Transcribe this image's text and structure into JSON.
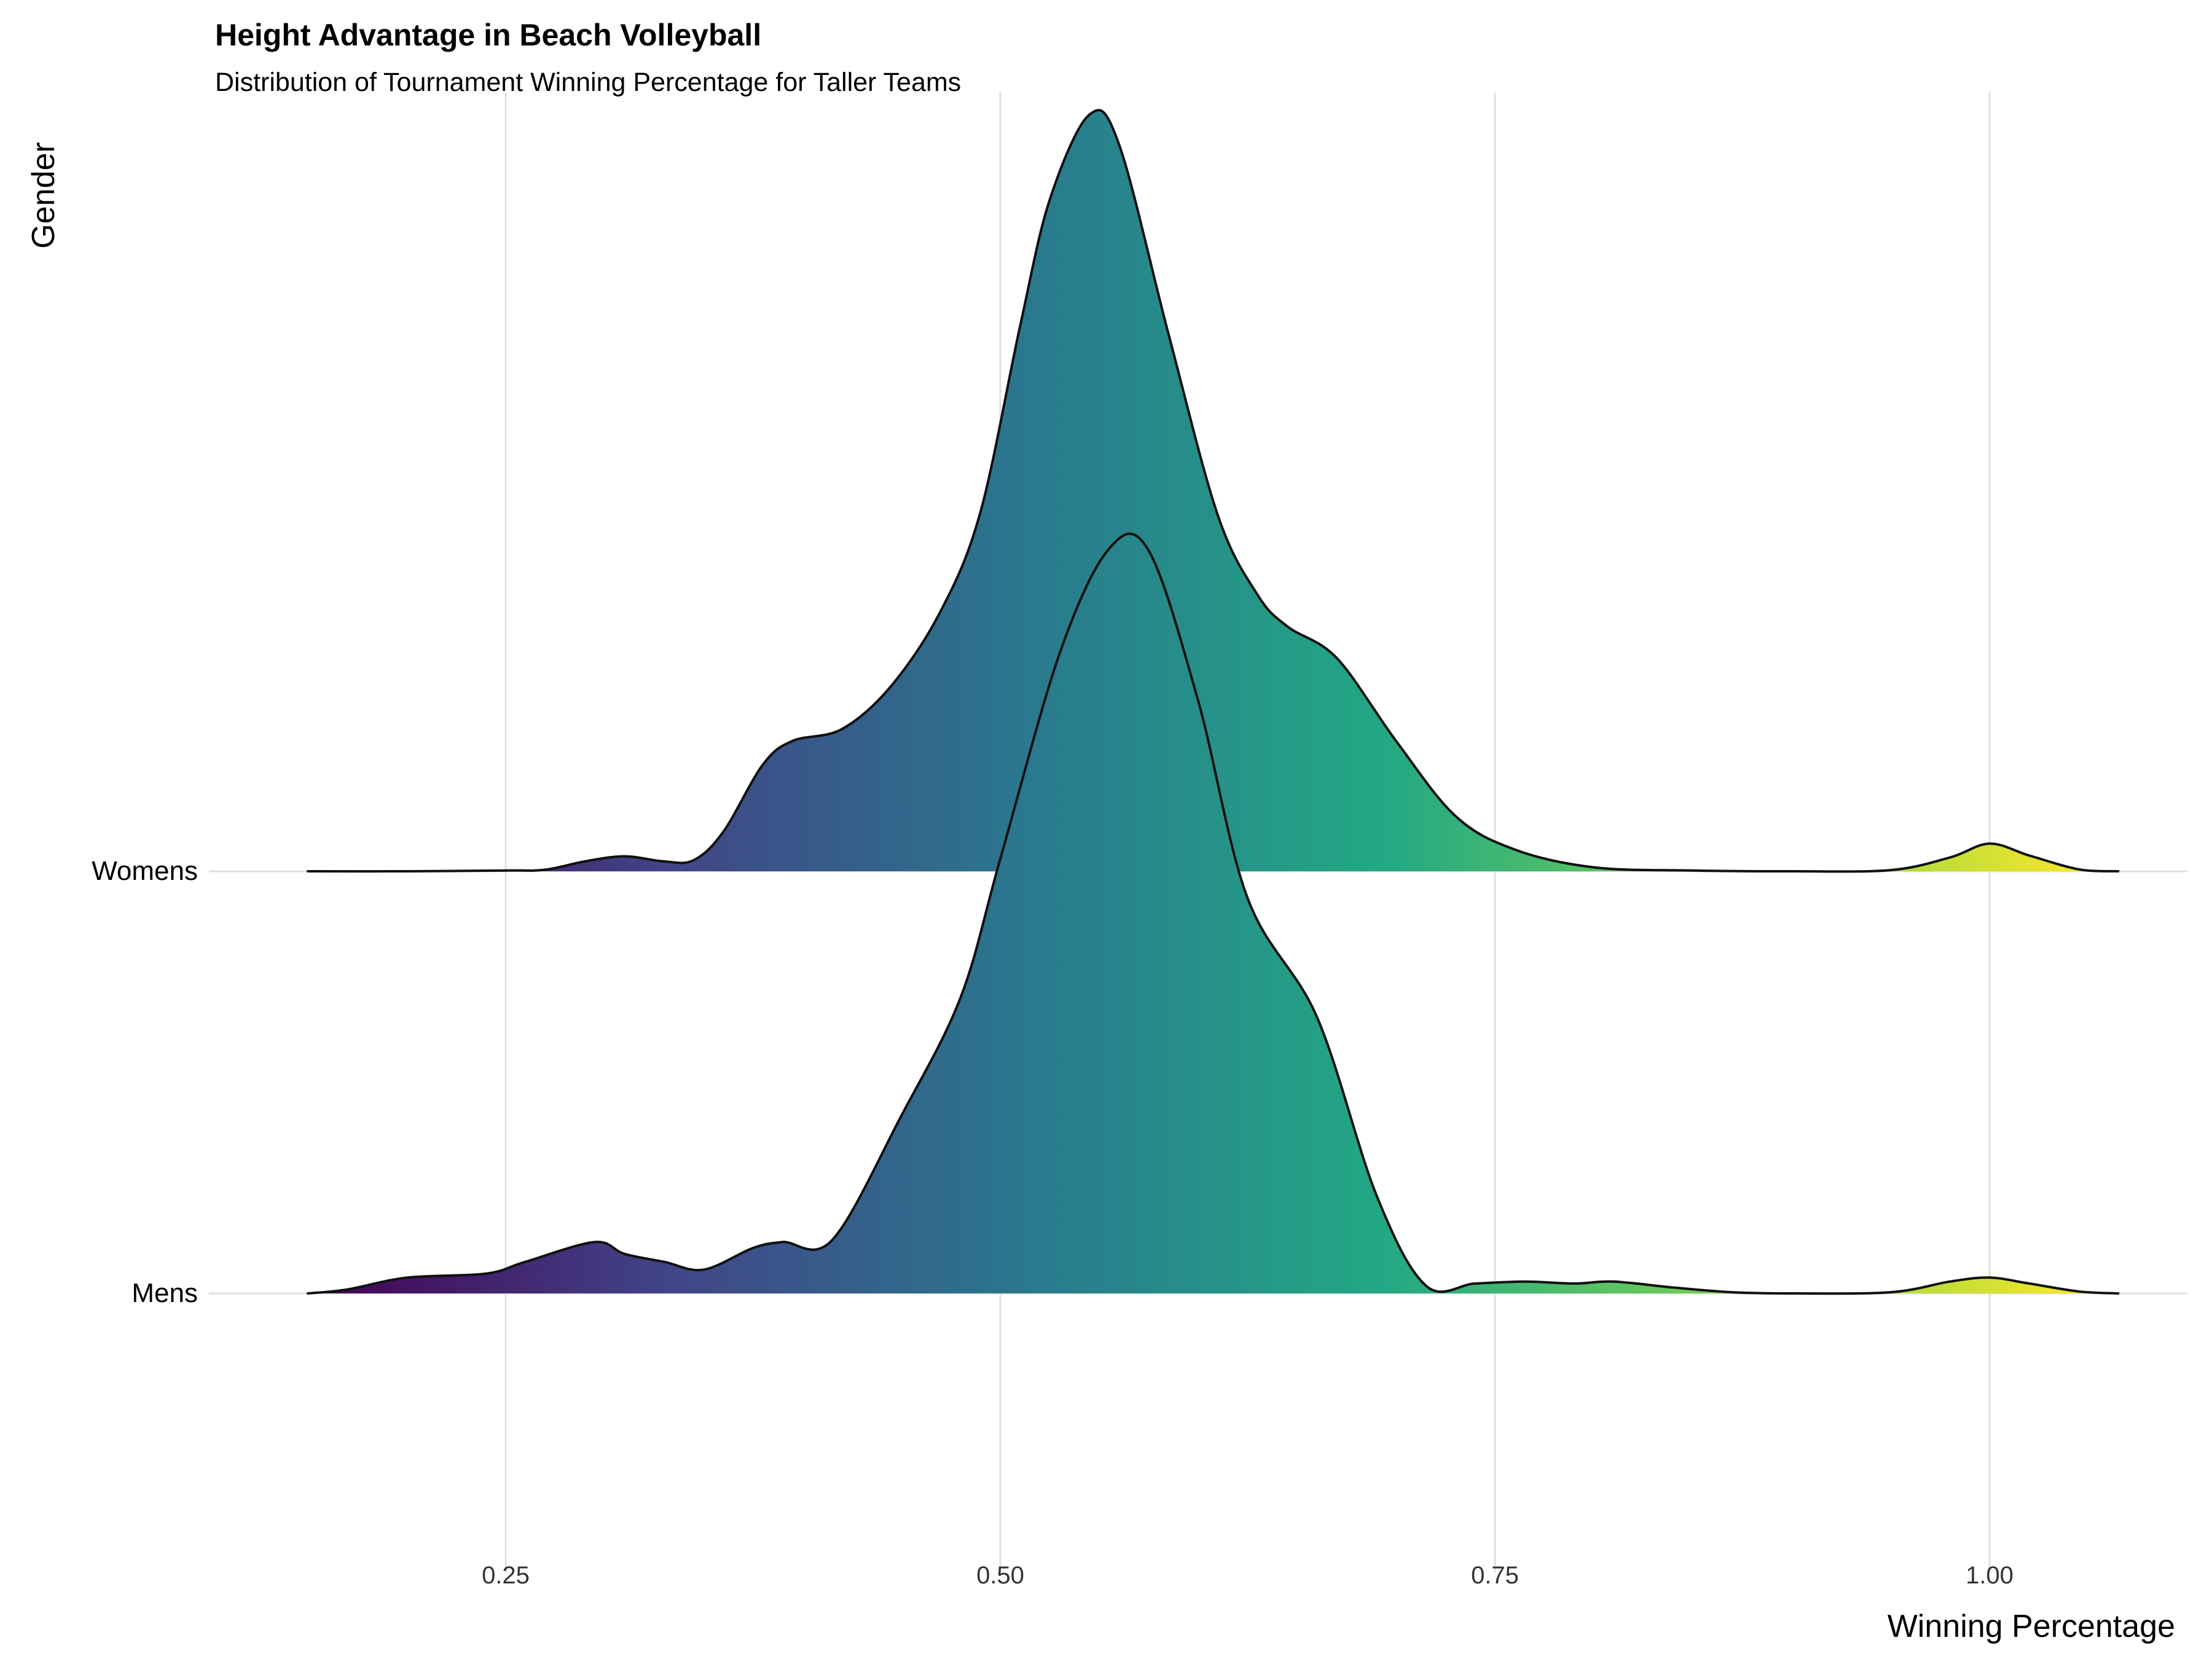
{
  "chart_data": {
    "type": "ridgeline",
    "title": "Height Advantage in Beach Volleyball",
    "subtitle": "Distribution of Tournament Winning Percentage for Taller Teams",
    "xlabel": "Winning Percentage",
    "ylabel": "Gender",
    "xlim": [
      0.1,
      1.1
    ],
    "x_ticks": [
      0.25,
      0.5,
      0.75,
      1.0
    ],
    "x_tick_labels": [
      "0.25",
      "0.50",
      "0.75",
      "1.00"
    ],
    "grid": true,
    "legend": "none",
    "fill_palette": [
      "#440154",
      "#3b528b",
      "#21918c",
      "#27ad81",
      "#5ec962",
      "#fde725"
    ],
    "categories": [
      "Womens",
      "Mens"
    ],
    "series": [
      {
        "name": "Womens",
        "points": [
          [
            0.15,
            0.0
          ],
          [
            0.2,
            0.0
          ],
          [
            0.25,
            0.002
          ],
          [
            0.27,
            0.004
          ],
          [
            0.29,
            0.025
          ],
          [
            0.31,
            0.038
          ],
          [
            0.33,
            0.025
          ],
          [
            0.345,
            0.028
          ],
          [
            0.36,
            0.1
          ],
          [
            0.38,
            0.27
          ],
          [
            0.395,
            0.33
          ],
          [
            0.42,
            0.36
          ],
          [
            0.445,
            0.47
          ],
          [
            0.47,
            0.66
          ],
          [
            0.49,
            0.91
          ],
          [
            0.51,
            1.38
          ],
          [
            0.525,
            1.7
          ],
          [
            0.545,
            1.915
          ],
          [
            0.56,
            1.84
          ],
          [
            0.585,
            1.36
          ],
          [
            0.61,
            0.9
          ],
          [
            0.63,
            0.7
          ],
          [
            0.645,
            0.62
          ],
          [
            0.67,
            0.54
          ],
          [
            0.7,
            0.33
          ],
          [
            0.73,
            0.14
          ],
          [
            0.76,
            0.055
          ],
          [
            0.8,
            0.01
          ],
          [
            0.85,
            0.002
          ],
          [
            0.9,
            0.0
          ],
          [
            0.95,
            0.003
          ],
          [
            0.98,
            0.035
          ],
          [
            1.0,
            0.07
          ],
          [
            1.02,
            0.04
          ],
          [
            1.045,
            0.005
          ],
          [
            1.065,
            0.0
          ]
        ]
      },
      {
        "name": "Mens",
        "points": [
          [
            0.15,
            0.0
          ],
          [
            0.17,
            0.01
          ],
          [
            0.2,
            0.04
          ],
          [
            0.24,
            0.05
          ],
          [
            0.26,
            0.08
          ],
          [
            0.295,
            0.13
          ],
          [
            0.31,
            0.1
          ],
          [
            0.33,
            0.08
          ],
          [
            0.35,
            0.06
          ],
          [
            0.375,
            0.115
          ],
          [
            0.39,
            0.13
          ],
          [
            0.415,
            0.135
          ],
          [
            0.45,
            0.45
          ],
          [
            0.48,
            0.75
          ],
          [
            0.5,
            1.1
          ],
          [
            0.53,
            1.62
          ],
          [
            0.555,
            1.885
          ],
          [
            0.575,
            1.88
          ],
          [
            0.6,
            1.5
          ],
          [
            0.625,
            1.0
          ],
          [
            0.66,
            0.7
          ],
          [
            0.69,
            0.25
          ],
          [
            0.715,
            0.02
          ],
          [
            0.74,
            0.025
          ],
          [
            0.765,
            0.03
          ],
          [
            0.79,
            0.025
          ],
          [
            0.81,
            0.03
          ],
          [
            0.84,
            0.015
          ],
          [
            0.87,
            0.003
          ],
          [
            0.9,
            0.0
          ],
          [
            0.95,
            0.003
          ],
          [
            0.98,
            0.03
          ],
          [
            1.0,
            0.04
          ],
          [
            1.02,
            0.025
          ],
          [
            1.045,
            0.005
          ],
          [
            1.065,
            0.0
          ]
        ]
      }
    ]
  }
}
